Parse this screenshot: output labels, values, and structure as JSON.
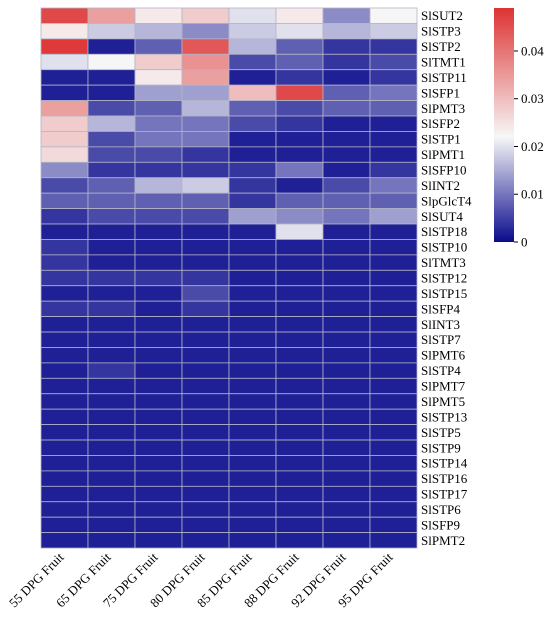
{
  "chart_data": {
    "type": "heatmap",
    "genes": [
      "SlSUT2",
      "SlSTP3",
      "SlSTP2",
      "SlTMT1",
      "SlSTP11",
      "SlSFP1",
      "SlPMT3",
      "SlSFP2",
      "SlSTP1",
      "SlPMT1",
      "SlSFP10",
      "SlINT2",
      "SlpGlcT4",
      "SlSUT4",
      "SlSTP18",
      "SlSTP10",
      "SlTMT3",
      "SlSTP12",
      "SlSTP15",
      "SlSFP4",
      "SlINT3",
      "SlSTP7",
      "SlPMT6",
      "SlSTP4",
      "SlPMT7",
      "SlPMT5",
      "SlSTP13",
      "SlSTP5",
      "SlSTP9",
      "SlSTP14",
      "SlSTP16",
      "SlSTP17",
      "SlSTP6",
      "SlSFP9",
      "SlPMT2"
    ],
    "samples": [
      "55 DPG Fruit",
      "65 DPG Fruit",
      "75 DPG Fruit",
      "80 DPG Fruit",
      "85 DPG Fruit",
      "88 DPG Fruit",
      "92 DPG Fruit",
      "95 DPG Fruit"
    ],
    "values": [
      [
        0.046,
        0.034,
        0.024,
        0.028,
        0.02,
        0.024,
        0.012,
        0.022
      ],
      [
        0.024,
        0.018,
        0.016,
        0.012,
        0.018,
        0.02,
        0.016,
        0.018
      ],
      [
        0.048,
        0.002,
        0.008,
        0.044,
        0.016,
        0.008,
        0.004,
        0.004
      ],
      [
        0.02,
        0.022,
        0.028,
        0.036,
        0.006,
        0.008,
        0.004,
        0.006
      ],
      [
        0.002,
        0.002,
        0.024,
        0.034,
        0.002,
        0.004,
        0.002,
        0.004
      ],
      [
        0.002,
        0.002,
        0.014,
        0.014,
        0.03,
        0.046,
        0.008,
        0.01
      ],
      [
        0.034,
        0.006,
        0.008,
        0.016,
        0.008,
        0.006,
        0.008,
        0.008
      ],
      [
        0.028,
        0.016,
        0.01,
        0.01,
        0.006,
        0.004,
        0.002,
        0.002
      ],
      [
        0.028,
        0.006,
        0.01,
        0.01,
        0.002,
        0.002,
        0.002,
        0.002
      ],
      [
        0.026,
        0.006,
        0.006,
        0.004,
        0.002,
        0.002,
        0.002,
        0.002
      ],
      [
        0.012,
        0.004,
        0.004,
        0.004,
        0.004,
        0.01,
        0.002,
        0.004
      ],
      [
        0.006,
        0.008,
        0.016,
        0.018,
        0.004,
        0.002,
        0.006,
        0.01
      ],
      [
        0.008,
        0.008,
        0.008,
        0.008,
        0.004,
        0.008,
        0.008,
        0.008
      ],
      [
        0.004,
        0.006,
        0.006,
        0.006,
        0.014,
        0.012,
        0.01,
        0.014
      ],
      [
        0.002,
        0.002,
        0.002,
        0.002,
        0.002,
        0.02,
        0.002,
        0.002
      ],
      [
        0.004,
        0.002,
        0.002,
        0.002,
        0.002,
        0.002,
        0.002,
        0.002
      ],
      [
        0.004,
        0.002,
        0.002,
        0.002,
        0.002,
        0.002,
        0.002,
        0.002
      ],
      [
        0.004,
        0.004,
        0.004,
        0.004,
        0.002,
        0.002,
        0.002,
        0.002
      ],
      [
        0.002,
        0.002,
        0.002,
        0.006,
        0.002,
        0.002,
        0.002,
        0.002
      ],
      [
        0.004,
        0.004,
        0.002,
        0.004,
        0.002,
        0.002,
        0.002,
        0.002
      ],
      [
        0.002,
        0.002,
        0.002,
        0.002,
        0.002,
        0.002,
        0.002,
        0.002
      ],
      [
        0.002,
        0.002,
        0.002,
        0.002,
        0.002,
        0.002,
        0.002,
        0.002
      ],
      [
        0.002,
        0.002,
        0.002,
        0.002,
        0.002,
        0.002,
        0.002,
        0.002
      ],
      [
        0.002,
        0.004,
        0.002,
        0.002,
        0.002,
        0.002,
        0.002,
        0.002
      ],
      [
        0.002,
        0.002,
        0.002,
        0.002,
        0.002,
        0.002,
        0.002,
        0.002
      ],
      [
        0.002,
        0.002,
        0.002,
        0.002,
        0.002,
        0.002,
        0.002,
        0.002
      ],
      [
        0.002,
        0.002,
        0.002,
        0.002,
        0.002,
        0.002,
        0.002,
        0.002
      ],
      [
        0.002,
        0.002,
        0.002,
        0.002,
        0.002,
        0.002,
        0.002,
        0.002
      ],
      [
        0.002,
        0.002,
        0.002,
        0.002,
        0.002,
        0.002,
        0.002,
        0.002
      ],
      [
        0.002,
        0.002,
        0.002,
        0.002,
        0.002,
        0.002,
        0.002,
        0.002
      ],
      [
        0.002,
        0.002,
        0.002,
        0.002,
        0.002,
        0.002,
        0.002,
        0.002
      ],
      [
        0.002,
        0.002,
        0.002,
        0.002,
        0.002,
        0.002,
        0.002,
        0.002
      ],
      [
        0.002,
        0.002,
        0.002,
        0.002,
        0.002,
        0.002,
        0.002,
        0.002
      ],
      [
        0.002,
        0.002,
        0.002,
        0.002,
        0.002,
        0.002,
        0.002,
        0.002
      ],
      [
        0.002,
        0.002,
        0.002,
        0.002,
        0.002,
        0.002,
        0.002,
        0.002
      ]
    ],
    "colorbar": {
      "min": 0,
      "max": 0.049,
      "ticks": [
        0,
        0.01,
        0.02,
        0.03,
        0.04
      ],
      "tick_labels": [
        "0",
        "0.01",
        "0.02",
        "0.03",
        "0.04"
      ]
    },
    "colors": {
      "low": "#0a0a8c",
      "mid": "#f7f7f7",
      "high": "#dd3333"
    },
    "grid": true
  }
}
